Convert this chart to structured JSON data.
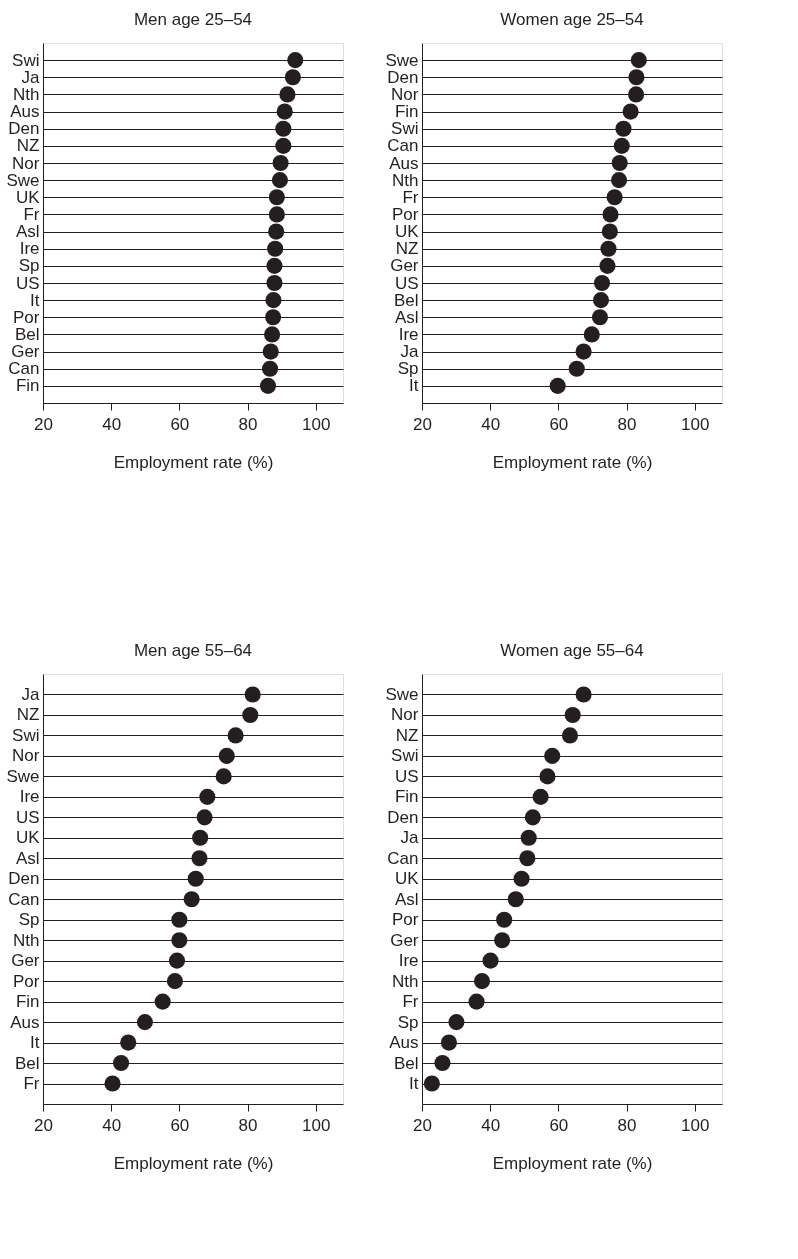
{
  "chart_data": [
    {
      "type": "scatter",
      "orientation": "horizontal",
      "title": "Men age 25–54",
      "xlabel": "Employment rate (%)",
      "categories": [
        "Swi",
        "Ja",
        "Nth",
        "Aus",
        "Den",
        "NZ",
        "Nor",
        "Swe",
        "UK",
        "Fr",
        "Asl",
        "Ire",
        "Sp",
        "US",
        "It",
        "Por",
        "Bel",
        "Ger",
        "Can",
        "Fin"
      ],
      "series": [
        {
          "color": "#231f20",
          "values": [
            94.0,
            93.3,
            91.7,
            90.9,
            90.5,
            90.5,
            89.7,
            89.5,
            88.6,
            88.6,
            88.4,
            88.1,
            87.9,
            87.9,
            87.6,
            87.5,
            87.2,
            86.8,
            86.6,
            86.0
          ]
        }
      ],
      "xlim": [
        20,
        108
      ],
      "xticks": [
        20,
        40,
        60,
        80,
        100
      ],
      "grid": "y",
      "marker": "circle"
    },
    {
      "type": "scatter",
      "orientation": "horizontal",
      "title": "Women age 25–54",
      "xlabel": "Employment rate (%)",
      "categories": [
        "Swe",
        "Den",
        "Nor",
        "Fin",
        "Swi",
        "Can",
        "Aus",
        "Nth",
        "Fr",
        "Por",
        "UK",
        "NZ",
        "Ger",
        "US",
        "Bel",
        "Asl",
        "Ire",
        "Ja",
        "Sp",
        "It"
      ],
      "series": [
        {
          "color": "#231f20",
          "values": [
            83.6,
            82.9,
            82.8,
            81.2,
            79.1,
            78.6,
            78.0,
            77.8,
            76.5,
            75.3,
            75.1,
            74.7,
            74.4,
            72.8,
            72.5,
            72.2,
            69.8,
            67.4,
            65.4,
            59.8
          ]
        }
      ],
      "xlim": [
        20,
        108
      ],
      "xticks": [
        20,
        40,
        60,
        80,
        100
      ],
      "grid": "y",
      "marker": "circle"
    },
    {
      "type": "scatter",
      "orientation": "horizontal",
      "title": "Men age 55–64",
      "xlabel": "Employment rate (%)",
      "categories": [
        "Ja",
        "NZ",
        "Swi",
        "Nor",
        "Swe",
        "Ire",
        "US",
        "UK",
        "Asl",
        "Den",
        "Can",
        "Sp",
        "Nth",
        "Ger",
        "Por",
        "Fin",
        "Aus",
        "It",
        "Bel",
        "Fr"
      ],
      "series": [
        {
          "color": "#231f20",
          "values": [
            81.5,
            80.8,
            76.5,
            73.9,
            73.0,
            68.2,
            67.4,
            66.1,
            65.9,
            64.8,
            63.6,
            60.0,
            60.0,
            59.3,
            58.7,
            55.1,
            49.9,
            45.0,
            42.9,
            40.4
          ]
        }
      ],
      "xlim": [
        20,
        108
      ],
      "xticks": [
        20,
        40,
        60,
        80,
        100
      ],
      "grid": "y",
      "marker": "circle"
    },
    {
      "type": "scatter",
      "orientation": "horizontal",
      "title": "Women age 55–64",
      "xlabel": "Employment rate (%)",
      "categories": [
        "Swe",
        "Nor",
        "NZ",
        "Swi",
        "US",
        "Fin",
        "Den",
        "Ja",
        "Can",
        "UK",
        "Asl",
        "Por",
        "Ger",
        "Ire",
        "Nth",
        "Fr",
        "Sp",
        "Aus",
        "Bel",
        "It"
      ],
      "series": [
        {
          "color": "#231f20",
          "values": [
            67.4,
            64.2,
            63.4,
            58.2,
            56.8,
            54.8,
            52.5,
            51.3,
            50.9,
            49.2,
            47.5,
            44.1,
            43.5,
            40.1,
            37.6,
            36.0,
            30.1,
            27.9,
            26.0,
            22.9
          ]
        }
      ],
      "xlim": [
        20,
        108
      ],
      "xticks": [
        20,
        40,
        60,
        80,
        100
      ],
      "grid": "y",
      "marker": "circle"
    }
  ]
}
